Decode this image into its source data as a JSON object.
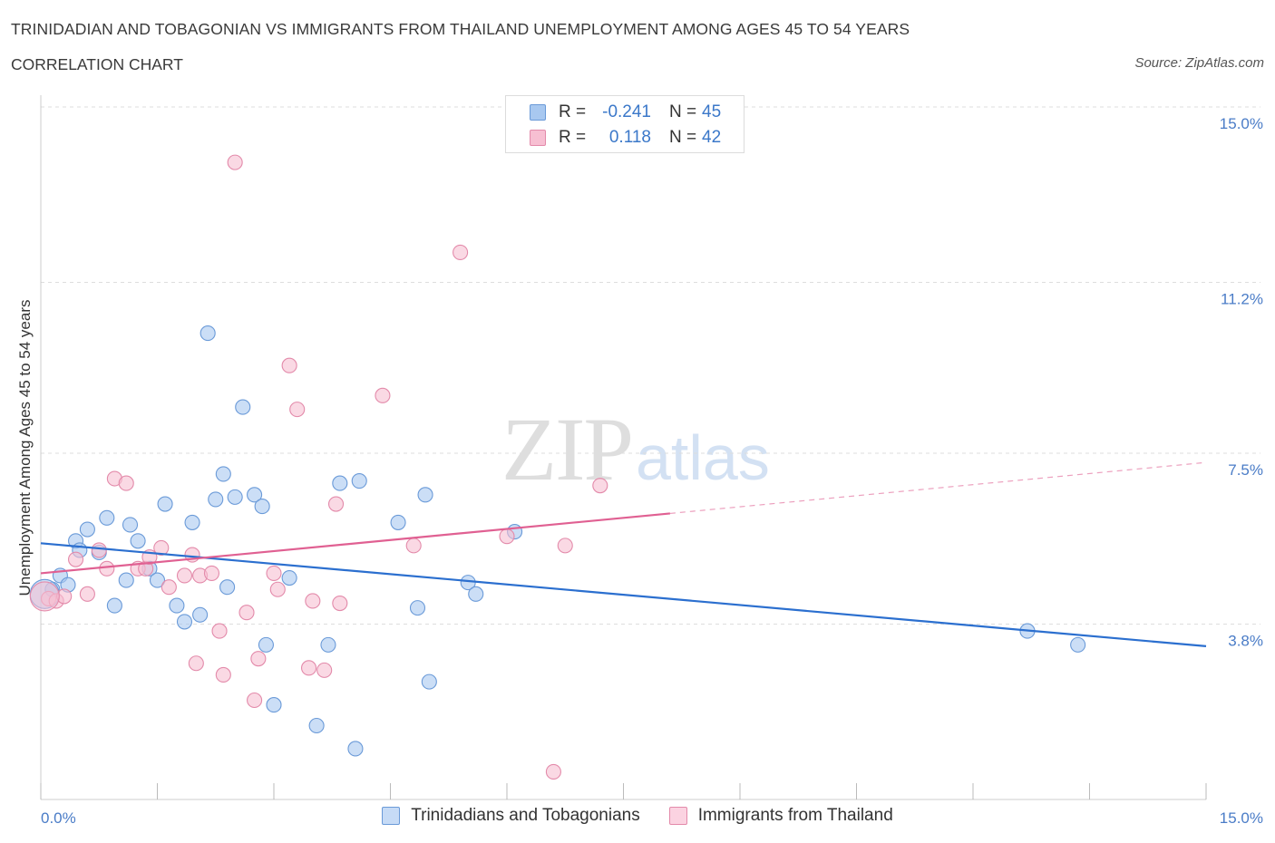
{
  "header": {
    "title": "TRINIDADIAN AND TOBAGONIAN VS IMMIGRANTS FROM THAILAND UNEMPLOYMENT AMONG AGES 45 TO 54 YEARS",
    "subtitle": "CORRELATION CHART",
    "source": "Source: ZipAtlas.com"
  },
  "watermark": {
    "zip": "ZIP",
    "atlas": "atlas"
  },
  "legend": {
    "rows": [
      {
        "r_label": "R =",
        "r_value": "-0.241",
        "n_label": "N =",
        "n_value": "45",
        "color": "#a8c8f0",
        "border": "#6a9ad8"
      },
      {
        "r_label": "R =",
        "r_value": "0.118",
        "n_label": "N =",
        "n_value": "42",
        "color": "#f7bfd2",
        "border": "#e38aaa"
      }
    ]
  },
  "bottom_legend": [
    {
      "label": "Trinidadians and Tobagonians",
      "color": "#c6dbf6",
      "border": "#6a9ad8"
    },
    {
      "label": "Immigrants from Thailand",
      "color": "#fbd3e1",
      "border": "#e38aaa"
    }
  ],
  "chart_data": {
    "type": "scatter",
    "title": "TRINIDADIAN AND TOBAGONIAN VS IMMIGRANTS FROM THAILAND UNEMPLOYMENT AMONG AGES 45 TO 54 YEARS",
    "ylabel": "Unemployment Among Ages 45 to 54 years",
    "xlabel": "",
    "xlim": [
      0,
      15
    ],
    "ylim": [
      0,
      15
    ],
    "x_tick_labels": [
      "0.0%",
      "15.0%"
    ],
    "y_ticks": [
      {
        "value": 15.0,
        "label": "15.0%"
      },
      {
        "value": 11.2,
        "label": "11.2%"
      },
      {
        "value": 7.5,
        "label": "7.5%"
      },
      {
        "value": 3.8,
        "label": "3.8%"
      }
    ],
    "grid": true,
    "series": [
      {
        "name": "Trinidadians and Tobagonians",
        "color": "#a8c8f0",
        "stroke": "#6a9ad8",
        "line_color": "#2b6fcf",
        "trend": {
          "x": [
            0,
            15
          ],
          "y": [
            5.55,
            3.32
          ],
          "dashed_from": null
        },
        "points": [
          [
            0.15,
            4.55
          ],
          [
            0.25,
            4.85
          ],
          [
            0.35,
            4.65
          ],
          [
            0.45,
            5.6
          ],
          [
            0.5,
            5.4
          ],
          [
            0.6,
            5.85
          ],
          [
            0.75,
            5.35
          ],
          [
            0.85,
            6.1
          ],
          [
            0.95,
            4.2
          ],
          [
            1.1,
            4.75
          ],
          [
            1.15,
            5.95
          ],
          [
            1.25,
            5.6
          ],
          [
            1.4,
            5.0
          ],
          [
            1.5,
            4.75
          ],
          [
            1.6,
            6.4
          ],
          [
            1.75,
            4.2
          ],
          [
            1.85,
            3.85
          ],
          [
            1.95,
            6.0
          ],
          [
            2.05,
            4.0
          ],
          [
            2.15,
            10.1
          ],
          [
            2.25,
            6.5
          ],
          [
            2.4,
            4.6
          ],
          [
            2.35,
            7.05
          ],
          [
            2.5,
            6.55
          ],
          [
            2.6,
            8.5
          ],
          [
            2.75,
            6.6
          ],
          [
            2.85,
            6.35
          ],
          [
            2.9,
            3.35
          ],
          [
            3.0,
            2.05
          ],
          [
            3.2,
            4.8
          ],
          [
            3.55,
            1.6
          ],
          [
            3.7,
            3.35
          ],
          [
            3.85,
            6.85
          ],
          [
            4.05,
            1.1
          ],
          [
            4.1,
            6.9
          ],
          [
            4.6,
            6.0
          ],
          [
            4.85,
            4.15
          ],
          [
            4.95,
            6.6
          ],
          [
            5.0,
            2.55
          ],
          [
            5.5,
            4.7
          ],
          [
            5.6,
            4.45
          ],
          [
            6.1,
            5.8
          ],
          [
            12.7,
            3.65
          ],
          [
            13.35,
            3.35
          ],
          [
            0.05,
            4.45
          ]
        ]
      },
      {
        "name": "Immigrants from Thailand",
        "color": "#f7bfd2",
        "stroke": "#e38aaa",
        "line_color": "#e06092",
        "trend": {
          "x": [
            0,
            15
          ],
          "y": [
            4.9,
            7.3
          ],
          "dashed_from": 8.1
        },
        "points": [
          [
            0.1,
            4.35
          ],
          [
            0.2,
            4.3
          ],
          [
            0.3,
            4.4
          ],
          [
            0.45,
            5.2
          ],
          [
            0.6,
            4.45
          ],
          [
            0.75,
            5.4
          ],
          [
            0.85,
            5.0
          ],
          [
            0.95,
            6.95
          ],
          [
            1.1,
            6.85
          ],
          [
            1.25,
            5.0
          ],
          [
            1.35,
            5.0
          ],
          [
            1.4,
            5.25
          ],
          [
            1.55,
            5.45
          ],
          [
            1.65,
            4.6
          ],
          [
            1.85,
            4.85
          ],
          [
            1.95,
            5.3
          ],
          [
            2.0,
            2.95
          ],
          [
            2.05,
            4.85
          ],
          [
            2.2,
            4.9
          ],
          [
            2.3,
            3.65
          ],
          [
            2.35,
            2.7
          ],
          [
            2.5,
            13.8
          ],
          [
            2.65,
            4.05
          ],
          [
            2.75,
            2.15
          ],
          [
            2.8,
            3.05
          ],
          [
            3.0,
            4.9
          ],
          [
            3.05,
            4.55
          ],
          [
            3.2,
            9.4
          ],
          [
            3.3,
            8.45
          ],
          [
            3.45,
            2.85
          ],
          [
            3.5,
            4.3
          ],
          [
            3.65,
            2.8
          ],
          [
            3.8,
            6.4
          ],
          [
            3.85,
            4.25
          ],
          [
            4.4,
            8.75
          ],
          [
            4.8,
            5.5
          ],
          [
            5.4,
            11.85
          ],
          [
            6.0,
            5.7
          ],
          [
            6.6,
            0.6
          ],
          [
            6.75,
            5.5
          ],
          [
            7.2,
            6.8
          ],
          [
            0.05,
            4.4
          ]
        ]
      }
    ]
  }
}
